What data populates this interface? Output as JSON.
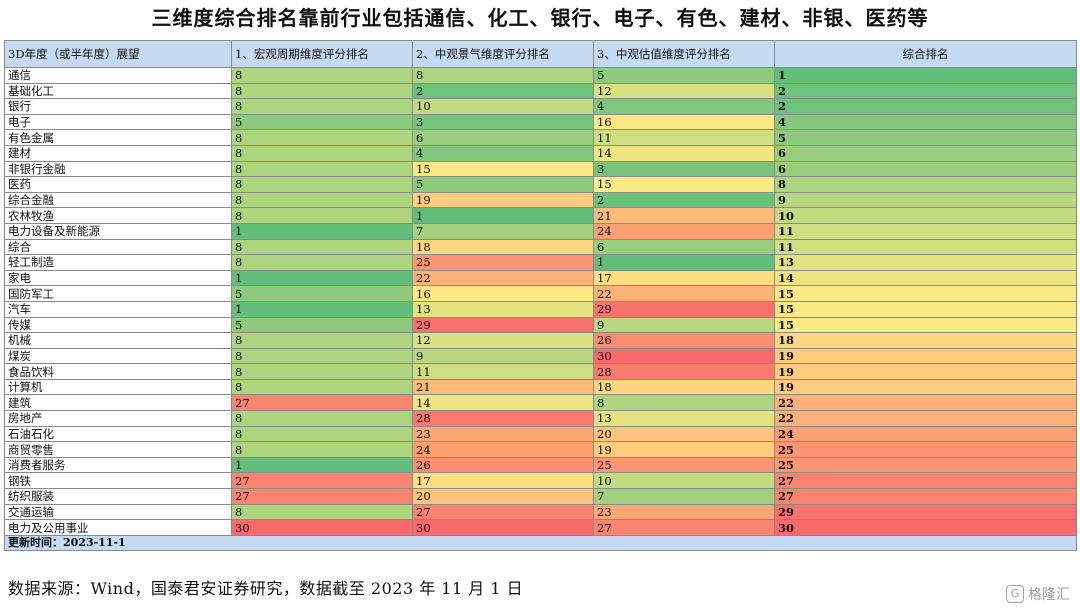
{
  "title": "三维度综合排名靠前行业包括通信、化工、银行、电子、有色、建材、非银、医药等",
  "source": "数据来源：Wind，国泰君安证券研究，数据截至 2023 年 11 月 1 日",
  "watermark": {
    "icon": "G",
    "text": "格隆汇"
  },
  "chart_data": {
    "type": "table",
    "columns": [
      "3D年度（或半年度）展望",
      "1、宏观周期维度评分排名",
      "2、中观景气维度评分排名",
      "3、中观估值维度评分排名",
      "综合排名"
    ],
    "rows": [
      {
        "industry": "通信",
        "macro": 8,
        "prosperity": 8,
        "valuation": 5,
        "overall": 1
      },
      {
        "industry": "基础化工",
        "macro": 8,
        "prosperity": 2,
        "valuation": 12,
        "overall": 2
      },
      {
        "industry": "银行",
        "macro": 8,
        "prosperity": 10,
        "valuation": 4,
        "overall": 2
      },
      {
        "industry": "电子",
        "macro": 5,
        "prosperity": 3,
        "valuation": 16,
        "overall": 4
      },
      {
        "industry": "有色金属",
        "macro": 8,
        "prosperity": 6,
        "valuation": 11,
        "overall": 5
      },
      {
        "industry": "建材",
        "macro": 8,
        "prosperity": 4,
        "valuation": 14,
        "overall": 6
      },
      {
        "industry": "非银行金融",
        "macro": 8,
        "prosperity": 15,
        "valuation": 3,
        "overall": 6
      },
      {
        "industry": "医药",
        "macro": 8,
        "prosperity": 5,
        "valuation": 15,
        "overall": 8
      },
      {
        "industry": "综合金融",
        "macro": 8,
        "prosperity": 19,
        "valuation": 2,
        "overall": 9
      },
      {
        "industry": "农林牧渔",
        "macro": 8,
        "prosperity": 1,
        "valuation": 21,
        "overall": 10
      },
      {
        "industry": "电力设备及新能源",
        "macro": 1,
        "prosperity": 7,
        "valuation": 24,
        "overall": 11
      },
      {
        "industry": "综合",
        "macro": 8,
        "prosperity": 18,
        "valuation": 6,
        "overall": 11
      },
      {
        "industry": "轻工制造",
        "macro": 8,
        "prosperity": 25,
        "valuation": 1,
        "overall": 13
      },
      {
        "industry": "家电",
        "macro": 1,
        "prosperity": 22,
        "valuation": 17,
        "overall": 14
      },
      {
        "industry": "国防军工",
        "macro": 5,
        "prosperity": 16,
        "valuation": 22,
        "overall": 15
      },
      {
        "industry": "汽车",
        "macro": 1,
        "prosperity": 13,
        "valuation": 29,
        "overall": 15
      },
      {
        "industry": "传媒",
        "macro": 5,
        "prosperity": 29,
        "valuation": 9,
        "overall": 15
      },
      {
        "industry": "机械",
        "macro": 8,
        "prosperity": 12,
        "valuation": 26,
        "overall": 18
      },
      {
        "industry": "煤炭",
        "macro": 8,
        "prosperity": 9,
        "valuation": 30,
        "overall": 19
      },
      {
        "industry": "食品饮料",
        "macro": 8,
        "prosperity": 11,
        "valuation": 28,
        "overall": 19
      },
      {
        "industry": "计算机",
        "macro": 8,
        "prosperity": 21,
        "valuation": 18,
        "overall": 19
      },
      {
        "industry": "建筑",
        "macro": 27,
        "prosperity": 14,
        "valuation": 8,
        "overall": 22
      },
      {
        "industry": "房地产",
        "macro": 8,
        "prosperity": 28,
        "valuation": 13,
        "overall": 22
      },
      {
        "industry": "石油石化",
        "macro": 8,
        "prosperity": 23,
        "valuation": 20,
        "overall": 24
      },
      {
        "industry": "商贸零售",
        "macro": 8,
        "prosperity": 24,
        "valuation": 19,
        "overall": 25
      },
      {
        "industry": "消费者服务",
        "macro": 1,
        "prosperity": 26,
        "valuation": 25,
        "overall": 25
      },
      {
        "industry": "钢铁",
        "macro": 27,
        "prosperity": 17,
        "valuation": 10,
        "overall": 27
      },
      {
        "industry": "纺织服装",
        "macro": 27,
        "prosperity": 20,
        "valuation": 7,
        "overall": 27
      },
      {
        "industry": "交通运输",
        "macro": 8,
        "prosperity": 27,
        "valuation": 23,
        "overall": 29
      },
      {
        "industry": "电力及公用事业",
        "macro": 30,
        "prosperity": 30,
        "valuation": 27,
        "overall": 30
      }
    ],
    "footer": "更新时间：2023-11-1",
    "color_scale": {
      "low": "#63be7b",
      "mid": "#ffeb84",
      "high": "#f8696b"
    }
  }
}
